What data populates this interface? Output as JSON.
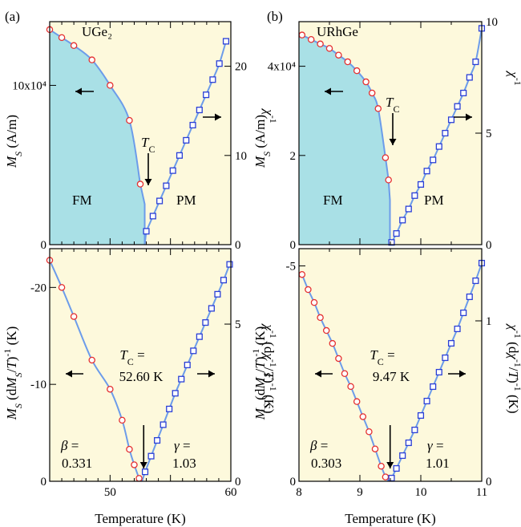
{
  "chart_data": [
    {
      "panel_label": "(a)",
      "type": "line",
      "top": {
        "material_text": "UGe₂",
        "ylabel_left": "M_S (A/m)",
        "ylabel_right": "χ⁻¹",
        "ylim_left": [
          0,
          140000
        ],
        "ylim_right": [
          0,
          25
        ],
        "yticks_left": [
          {
            "value": 0,
            "label": "0"
          },
          {
            "value": 100000,
            "label": "10x10⁴"
          }
        ],
        "yticks_right": [
          0,
          10,
          20
        ],
        "region_left": "FM",
        "region_right": "PM",
        "tc_label": "T_C",
        "shaded_ordered_region": true,
        "ms_points": {
          "x": [
            45,
            46,
            47,
            48.5,
            50,
            51.6,
            52.5
          ],
          "y": [
            135000,
            130000,
            125000,
            116000,
            100000,
            78000,
            38000
          ]
        },
        "inverse_chi_points": {
          "x": [
            53.0,
            53.55,
            54.1,
            54.65,
            55.2,
            55.75,
            56.3,
            56.85,
            57.4,
            57.95,
            58.5,
            59.05,
            59.6
          ],
          "y": [
            1.5,
            3.2,
            4.9,
            6.6,
            8.3,
            10.0,
            11.7,
            13.4,
            15.1,
            16.8,
            18.5,
            20.3,
            22.8
          ]
        }
      },
      "bottom": {
        "ylabel_left": "M_S (dM_S/dT)⁻¹ (K)",
        "ylabel_right": "χ⁻¹ (dχ⁻¹/dT)⁻¹ (K)",
        "ylim_left": [
          0,
          -24
        ],
        "ylim_right": [
          0,
          7.4
        ],
        "yticks_left": [
          0,
          -10,
          -20
        ],
        "yticks_right": [
          0,
          5
        ],
        "tc_text": "T_C =",
        "tc_value": "52.60 K",
        "beta_text": "β =",
        "beta_value": "0.331",
        "gamma_text": "γ =",
        "gamma_value": "1.03",
        "ms_points": {
          "x": [
            45,
            46,
            47,
            48.5,
            50,
            51,
            51.6,
            52.0,
            52.4
          ],
          "y": [
            -22.8,
            -20.0,
            -17.0,
            -12.5,
            -9.5,
            -6.3,
            -3.3,
            -1.7,
            -0.3
          ]
        },
        "inverse_chi_points": {
          "x": [
            52.9,
            53.4,
            53.9,
            54.4,
            54.9,
            55.4,
            55.9,
            56.4,
            56.9,
            57.4,
            57.9,
            58.4,
            58.9,
            59.4,
            59.9
          ],
          "y": [
            0.3,
            0.8,
            1.3,
            1.8,
            2.3,
            2.8,
            3.25,
            3.7,
            4.15,
            4.6,
            5.05,
            5.5,
            5.95,
            6.4,
            6.9
          ]
        }
      },
      "xlabel": "Temperature (K)",
      "xlim": [
        45,
        60
      ],
      "xticks": [
        50,
        60
      ]
    },
    {
      "panel_label": "(b)",
      "type": "line",
      "top": {
        "material_text": "URhGe",
        "ylabel_left": "M_S (A/m)",
        "ylabel_right": "χ⁻¹",
        "ylim_left": [
          0,
          50000
        ],
        "ylim_right": [
          0,
          10
        ],
        "yticks_left": [
          {
            "value": 0,
            "label": "0"
          },
          {
            "value": 20000,
            "label": "2"
          },
          {
            "value": 40000,
            "label": "4x10⁴"
          }
        ],
        "yticks_right": [
          0,
          5,
          10
        ],
        "region_left": "FM",
        "region_right": "PM",
        "tc_label": "T_C",
        "shaded_ordered_region": true,
        "ms_points": {
          "x": [
            8.05,
            8.2,
            8.35,
            8.5,
            8.65,
            8.8,
            8.95,
            9.1,
            9.2,
            9.3,
            9.42,
            9.47
          ],
          "y": [
            47000,
            46000,
            45000,
            44000,
            42500,
            41000,
            39000,
            36500,
            34000,
            30500,
            19500,
            14500
          ]
        },
        "inverse_chi_points": {
          "x": [
            9.52,
            9.6,
            9.7,
            9.8,
            9.9,
            10.0,
            10.1,
            10.2,
            10.3,
            10.4,
            10.5,
            10.6,
            10.7,
            10.8,
            10.9,
            11.0
          ],
          "y": [
            0.1,
            0.5,
            1.1,
            1.6,
            2.2,
            2.7,
            3.3,
            3.8,
            4.4,
            5.0,
            5.6,
            6.2,
            6.8,
            7.5,
            8.2,
            9.7
          ]
        }
      },
      "bottom": {
        "ylabel_left": "M_S (dM_S/dT)⁻¹ (K)",
        "ylabel_right": "χ⁻¹ (dχ⁻¹/dT)⁻¹ (K)",
        "ylim_left": [
          0,
          -5.4
        ],
        "ylim_right": [
          0,
          1.45
        ],
        "yticks_left": [
          0,
          -5
        ],
        "yticks_right": [
          0,
          1
        ],
        "tc_text": "T_C =",
        "tc_value": "9.47 K",
        "beta_text": "β =",
        "beta_value": "0.303",
        "gamma_text": "γ =",
        "gamma_value": "1.01",
        "ms_points": {
          "x": [
            8.05,
            8.15,
            8.25,
            8.35,
            8.45,
            8.55,
            8.65,
            8.75,
            8.85,
            8.95,
            9.05,
            9.15,
            9.25,
            9.35,
            9.42
          ],
          "y": [
            -4.8,
            -4.45,
            -4.15,
            -3.8,
            -3.5,
            -3.2,
            -2.85,
            -2.5,
            -2.2,
            -1.85,
            -1.5,
            -1.15,
            -0.75,
            -0.35,
            -0.1
          ]
        },
        "inverse_chi_points": {
          "x": [
            9.52,
            9.6,
            9.7,
            9.8,
            9.9,
            10.0,
            10.1,
            10.2,
            10.3,
            10.4,
            10.5,
            10.6,
            10.7,
            10.8,
            10.9,
            11.0
          ],
          "y": [
            0.02,
            0.08,
            0.16,
            0.24,
            0.32,
            0.41,
            0.5,
            0.59,
            0.68,
            0.77,
            0.86,
            0.95,
            1.05,
            1.15,
            1.25,
            1.36
          ]
        }
      },
      "xlabel": "Temperature (K)",
      "xlim": [
        8,
        11
      ],
      "xticks": [
        8,
        9,
        10,
        11
      ]
    }
  ],
  "colors": {
    "fm_fill": "#a9e0e6",
    "background_fill": "#fdf9dc",
    "curve": "#6c9cea",
    "ms_marker": "#e53030",
    "chi_marker": "#2a3fd6"
  }
}
